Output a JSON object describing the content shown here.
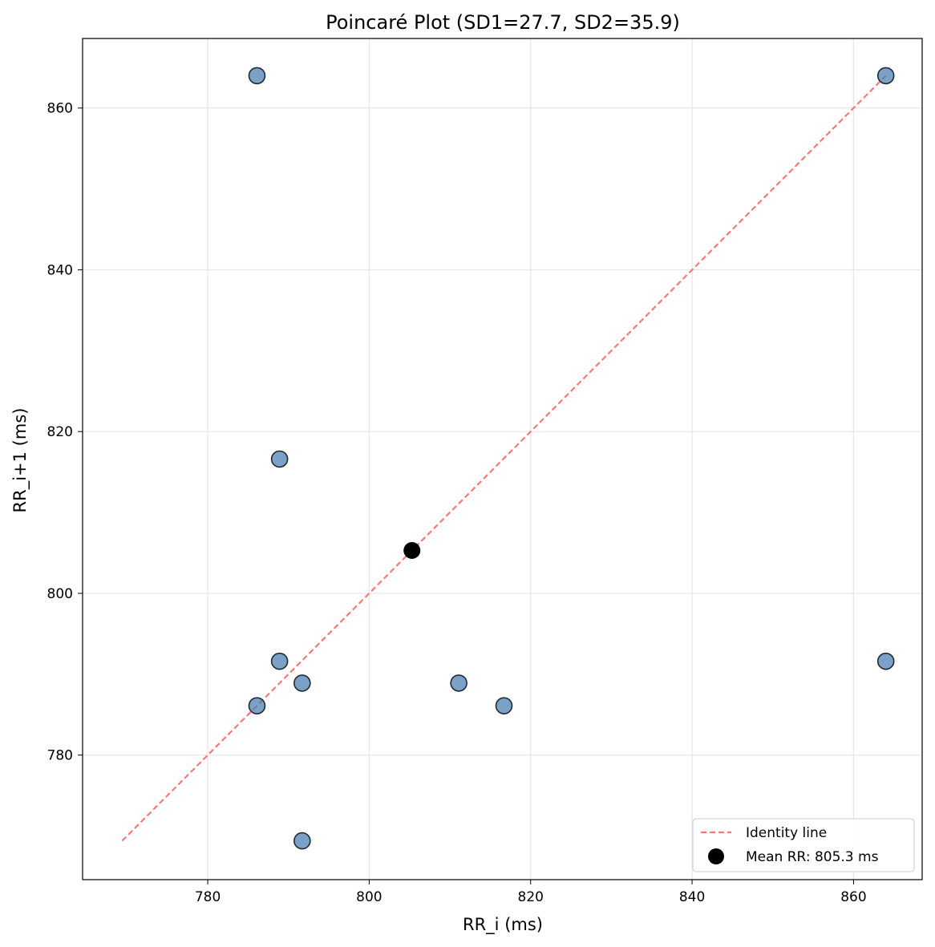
{
  "chart_data": {
    "type": "scatter",
    "title": "Poincaré Plot (SD1=27.7, SD2=35.9)",
    "xlabel": "RR_i (ms)",
    "ylabel": "RR_i+1 (ms)",
    "xlim": [
      764.5,
      868.5
    ],
    "ylim": [
      764.6,
      868.6
    ],
    "xticks": [
      780,
      800,
      820,
      840,
      860
    ],
    "yticks": [
      780,
      800,
      820,
      840,
      860
    ],
    "grid": true,
    "legend_position": "bottom-right",
    "series": [
      {
        "kind": "points",
        "color": "#4a7db0",
        "points": [
          {
            "x": 786.1,
            "y": 864.0
          },
          {
            "x": 864.0,
            "y": 864.0
          },
          {
            "x": 788.9,
            "y": 816.6
          },
          {
            "x": 788.9,
            "y": 791.6
          },
          {
            "x": 791.7,
            "y": 788.9
          },
          {
            "x": 786.1,
            "y": 786.1
          },
          {
            "x": 811.1,
            "y": 788.9
          },
          {
            "x": 816.7,
            "y": 786.1
          },
          {
            "x": 864.0,
            "y": 791.6
          },
          {
            "x": 791.7,
            "y": 769.4
          }
        ]
      },
      {
        "kind": "identity-line",
        "name": "Identity line",
        "color": "#ff7777",
        "from": [
          769.4,
          769.4
        ],
        "to": [
          864.0,
          864.0
        ]
      },
      {
        "kind": "mean-point",
        "name": "Mean RR: 805.3 ms",
        "color": "#000000",
        "x": 805.3,
        "y": 805.3
      }
    ]
  }
}
